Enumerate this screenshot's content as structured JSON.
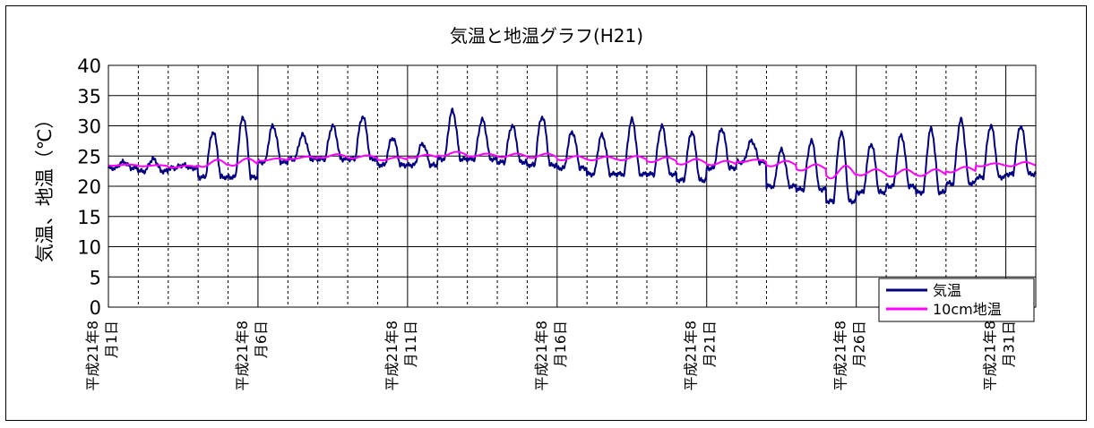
{
  "chart_data": {
    "type": "line",
    "title": "気温と地温グラフ(H21)",
    "xlabel": "",
    "ylabel": "気温、地温（℃）",
    "ylim": [
      0,
      40
    ],
    "yticks": [
      0,
      5,
      10,
      15,
      20,
      25,
      30,
      35,
      40
    ],
    "xlim": [
      1,
      32
    ],
    "categories": [
      {
        "line1": "平成21年8",
        "line2": "月1日",
        "day": 1
      },
      {
        "line1": "平成21年8",
        "line2": "月6日",
        "day": 6
      },
      {
        "line1": "平成21年8",
        "line2": "月11日",
        "day": 11
      },
      {
        "line1": "平成21年8",
        "line2": "月16日",
        "day": 16
      },
      {
        "line1": "平成21年8",
        "line2": "月21日",
        "day": 21
      },
      {
        "line1": "平成21年8",
        "line2": "月26日",
        "day": 26
      },
      {
        "line1": "平成21年8",
        "line2": "月31日",
        "day": 31
      }
    ],
    "grid": true,
    "legend_position": "bottom-right",
    "series": [
      {
        "name": "気温",
        "color": "#000080",
        "daily_max": [
          24.0,
          24.5,
          23.5,
          29.0,
          31.5,
          30.0,
          28.5,
          30.0,
          31.5,
          28.0,
          27.0,
          32.5,
          31.0,
          30.0,
          31.5,
          29.0,
          28.5,
          31.0,
          30.0,
          29.0,
          29.5,
          27.5,
          26.0,
          27.5,
          29.0,
          27.0,
          28.5,
          29.5,
          31.0,
          30.0,
          30.0
        ],
        "daily_min": [
          23.0,
          22.5,
          23.0,
          21.5,
          21.5,
          24.0,
          24.5,
          24.5,
          24.5,
          23.5,
          23.5,
          24.5,
          24.5,
          24.0,
          23.5,
          23.0,
          22.0,
          22.0,
          22.0,
          21.0,
          23.0,
          24.0,
          20.0,
          19.5,
          17.5,
          19.0,
          20.0,
          19.0,
          20.5,
          21.5,
          22.0
        ]
      },
      {
        "name": "10cm地温",
        "color": "#ff00ff",
        "daily_max": [
          23.6,
          23.5,
          23.4,
          24.4,
          24.6,
          24.6,
          24.9,
          25.3,
          25.1,
          24.8,
          25.2,
          25.7,
          25.4,
          25.4,
          25.4,
          25.0,
          24.9,
          25.0,
          24.8,
          24.5,
          24.2,
          24.4,
          24.2,
          23.6,
          23.4,
          22.8,
          22.8,
          22.8,
          23.2,
          23.8,
          24.0
        ],
        "daily_min": [
          23.4,
          23.3,
          23.1,
          23.2,
          23.4,
          24.2,
          24.5,
          24.7,
          24.6,
          24.3,
          24.7,
          25.0,
          24.9,
          24.8,
          24.7,
          24.3,
          24.3,
          24.3,
          24.0,
          23.6,
          23.5,
          24.0,
          23.3,
          22.6,
          21.3,
          21.8,
          21.6,
          21.7,
          22.3,
          23.3,
          23.3
        ]
      }
    ]
  }
}
